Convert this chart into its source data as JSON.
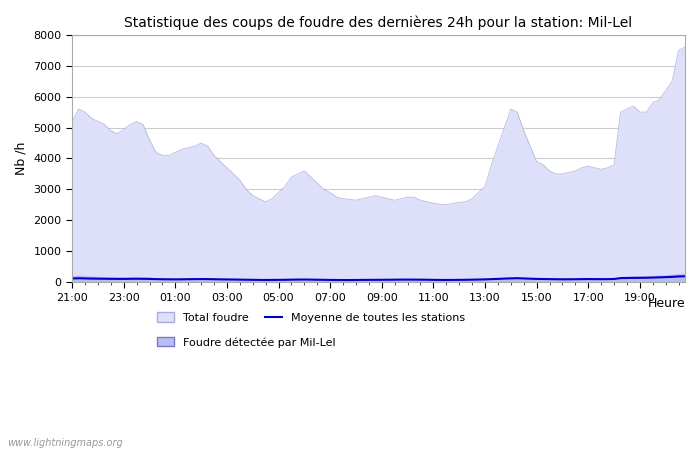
{
  "title": "Statistique des coups de foudre des dernières 24h pour la station: Mil-Lel",
  "xlabel": "Heure",
  "ylabel": "Nb /h",
  "ylim": [
    0,
    8000
  ],
  "yticks": [
    0,
    1000,
    2000,
    3000,
    4000,
    5000,
    6000,
    7000,
    8000
  ],
  "xtick_labels": [
    "21:00",
    "23:00",
    "01:00",
    "03:00",
    "05:00",
    "07:00",
    "09:00",
    "11:00",
    "13:00",
    "15:00",
    "17:00",
    "19:00"
  ],
  "bg_color": "#ffffff",
  "plot_bg_color": "#ffffff",
  "grid_color": "#cccccc",
  "total_foudre_color": "#dde0f8",
  "total_foudre_edge": "#aaaadd",
  "mil_lel_color": "#b8bef0",
  "mil_lel_edge": "#7777cc",
  "moyenne_color": "#0000cc",
  "watermark": "www.lightningmaps.org",
  "x": [
    0,
    1,
    2,
    3,
    4,
    5,
    6,
    7,
    8,
    9,
    10,
    11,
    12,
    13,
    14,
    15,
    16,
    17,
    18,
    19,
    20,
    21,
    22,
    23,
    24,
    25,
    26,
    27,
    28,
    29,
    30,
    31,
    32,
    33,
    34,
    35,
    36,
    37,
    38,
    39,
    40,
    41,
    42,
    43,
    44,
    45,
    46,
    47,
    48,
    49,
    50,
    51,
    52,
    53,
    54,
    55,
    56,
    57,
    58,
    59,
    60,
    61,
    62,
    63,
    64,
    65,
    66,
    67,
    68,
    69,
    70,
    71,
    72,
    73,
    74,
    75,
    76,
    77,
    78,
    79,
    80,
    81,
    82,
    83,
    84,
    85,
    86,
    87,
    88,
    89,
    90,
    91,
    92,
    93,
    94,
    95
  ],
  "total_foudre": [
    5200,
    5600,
    5500,
    5300,
    5200,
    5100,
    4900,
    4800,
    4950,
    5100,
    5200,
    5100,
    4600,
    4200,
    4100,
    4100,
    4200,
    4300,
    4350,
    4400,
    4500,
    4400,
    4100,
    3900,
    3700,
    3500,
    3300,
    3000,
    2800,
    2700,
    2600,
    2700,
    2900,
    3100,
    3400,
    3500,
    3600,
    3400,
    3200,
    3000,
    2900,
    2750,
    2700,
    2680,
    2650,
    2700,
    2750,
    2800,
    2750,
    2700,
    2650,
    2700,
    2750,
    2750,
    2650,
    2600,
    2550,
    2520,
    2510,
    2540,
    2580,
    2600,
    2700,
    2900,
    3100,
    3800,
    4400,
    5000,
    5600,
    5500,
    4900,
    4400,
    3900,
    3800,
    3600,
    3500,
    3500,
    3550,
    3600,
    3700,
    3750,
    3700,
    3650,
    3700,
    3800,
    5500,
    5600,
    5700,
    5500,
    5500,
    5800,
    5900,
    6200,
    6500,
    7500,
    7600
  ],
  "mil_lel": [
    200,
    230,
    210,
    200,
    190,
    180,
    170,
    165,
    160,
    170,
    175,
    170,
    160,
    140,
    130,
    125,
    120,
    130,
    135,
    140,
    145,
    140,
    130,
    120,
    110,
    100,
    90,
    80,
    75,
    70,
    65,
    70,
    75,
    80,
    90,
    100,
    105,
    95,
    85,
    80,
    75,
    70,
    65,
    65,
    68,
    70,
    72,
    75,
    78,
    80,
    85,
    88,
    90,
    88,
    82,
    78,
    72,
    70,
    68,
    70,
    75,
    80,
    85,
    95,
    105,
    120,
    135,
    150,
    165,
    175,
    158,
    145,
    135,
    130,
    120,
    115,
    112,
    115,
    118,
    122,
    125,
    122,
    120,
    122,
    128,
    185,
    195,
    200,
    205,
    210,
    220,
    230,
    240,
    260,
    280,
    290
  ],
  "moyenne": [
    120,
    125,
    120,
    115,
    112,
    110,
    108,
    106,
    105,
    108,
    110,
    108,
    105,
    98,
    95,
    92,
    90,
    92,
    95,
    98,
    100,
    98,
    95,
    90,
    88,
    85,
    82,
    78,
    75,
    72,
    70,
    72,
    74,
    76,
    80,
    83,
    85,
    82,
    78,
    75,
    72,
    70,
    68,
    68,
    70,
    72,
    74,
    75,
    76,
    78,
    80,
    82,
    83,
    82,
    80,
    78,
    74,
    72,
    70,
    72,
    74,
    76,
    80,
    85,
    90,
    98,
    105,
    115,
    122,
    128,
    120,
    112,
    105,
    102,
    98,
    95,
    92,
    93,
    95,
    98,
    100,
    98,
    97,
    98,
    102,
    130,
    135,
    138,
    140,
    142,
    148,
    155,
    162,
    170,
    185,
    190
  ]
}
